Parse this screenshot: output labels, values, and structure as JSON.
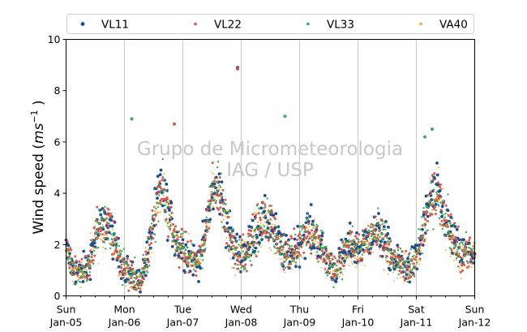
{
  "chart_data": {
    "type": "scatter",
    "title": "",
    "xlabel": "",
    "ylabel": "Wind speed ($ms^{-1}$ )",
    "ylabel_parts": {
      "pre": "Wind speed (",
      "italic": "ms",
      "sup": "−1",
      "post": " )"
    },
    "ylim": [
      0,
      10
    ],
    "yticks": [
      0,
      2,
      4,
      6,
      8,
      10
    ],
    "xlim": [
      "2025-01-05 00:00",
      "2025-01-12 00:00"
    ],
    "xticks": [
      {
        "line1": "Sun",
        "line2": "Jan-05"
      },
      {
        "line1": "Mon",
        "line2": "Jan-06"
      },
      {
        "line1": "Tue",
        "line2": "Jan-07"
      },
      {
        "line1": "Wed",
        "line2": "Jan-08"
      },
      {
        "line1": "Thu",
        "line2": "Jan-09"
      },
      {
        "line1": "Fri",
        "line2": "Jan-10"
      },
      {
        "line1": "Sat",
        "line2": "Jan-11"
      },
      {
        "line1": "Sun",
        "line2": "Jan-12"
      }
    ],
    "grid": "vertical at day boundaries",
    "legend_position": "top, above plot, 4 columns",
    "watermark": [
      "Grupo de Micrometeorologia",
      "IAG / USP"
    ],
    "series": [
      {
        "name": "VL11",
        "color": "#1f4e8c"
      },
      {
        "name": "VL22",
        "color": "#d9534f"
      },
      {
        "name": "VL33",
        "color": "#3aaa5c"
      },
      {
        "name": "VA40",
        "color": "#f5a623"
      }
    ],
    "mean_profile": {
      "x_hours": [
        0,
        3,
        6,
        9,
        12,
        15,
        18,
        21,
        24,
        27,
        30,
        33,
        36,
        39,
        42,
        45,
        48,
        51,
        54,
        57,
        60,
        63,
        66,
        69,
        72,
        75,
        78,
        81,
        84,
        87,
        90,
        93,
        96,
        99,
        102,
        105,
        108,
        111,
        114,
        117,
        120,
        123,
        126,
        129,
        132,
        135,
        138,
        141,
        144,
        147,
        150,
        153,
        156,
        159,
        162,
        165,
        168
      ],
      "y": [
        1.8,
        1.0,
        0.9,
        1.2,
        2.3,
        2.8,
        2.8,
        1.6,
        1.2,
        0.7,
        0.6,
        1.3,
        3.0,
        4.3,
        3.3,
        2.2,
        1.8,
        1.5,
        1.3,
        2.2,
        4.0,
        4.2,
        2.8,
        1.9,
        1.7,
        1.9,
        2.6,
        2.8,
        2.9,
        2.2,
        1.6,
        1.7,
        2.1,
        2.6,
        2.4,
        1.9,
        1.3,
        1.0,
        1.6,
        2.0,
        1.8,
        2.1,
        2.4,
        2.4,
        2.0,
        1.3,
        1.2,
        1.1,
        1.4,
        2.6,
        3.9,
        3.9,
        3.0,
        2.2,
        1.6,
        1.7,
        1.6
      ]
    },
    "spread": 0.55,
    "outliers": [
      {
        "x_hours": 70.5,
        "y": 8.9,
        "series": "VL11"
      },
      {
        "x_hours": 70.5,
        "y": 8.85,
        "series": "VL22"
      },
      {
        "x_hours": 90.0,
        "y": 7.0,
        "series": "VL33"
      },
      {
        "x_hours": 27.0,
        "y": 6.9,
        "series": "VL33"
      },
      {
        "x_hours": 44.5,
        "y": 6.7,
        "series": "VL22"
      },
      {
        "x_hours": 150.5,
        "y": 6.5,
        "series": "VL33"
      },
      {
        "x_hours": 147.5,
        "y": 6.2,
        "series": "VL33"
      }
    ]
  }
}
